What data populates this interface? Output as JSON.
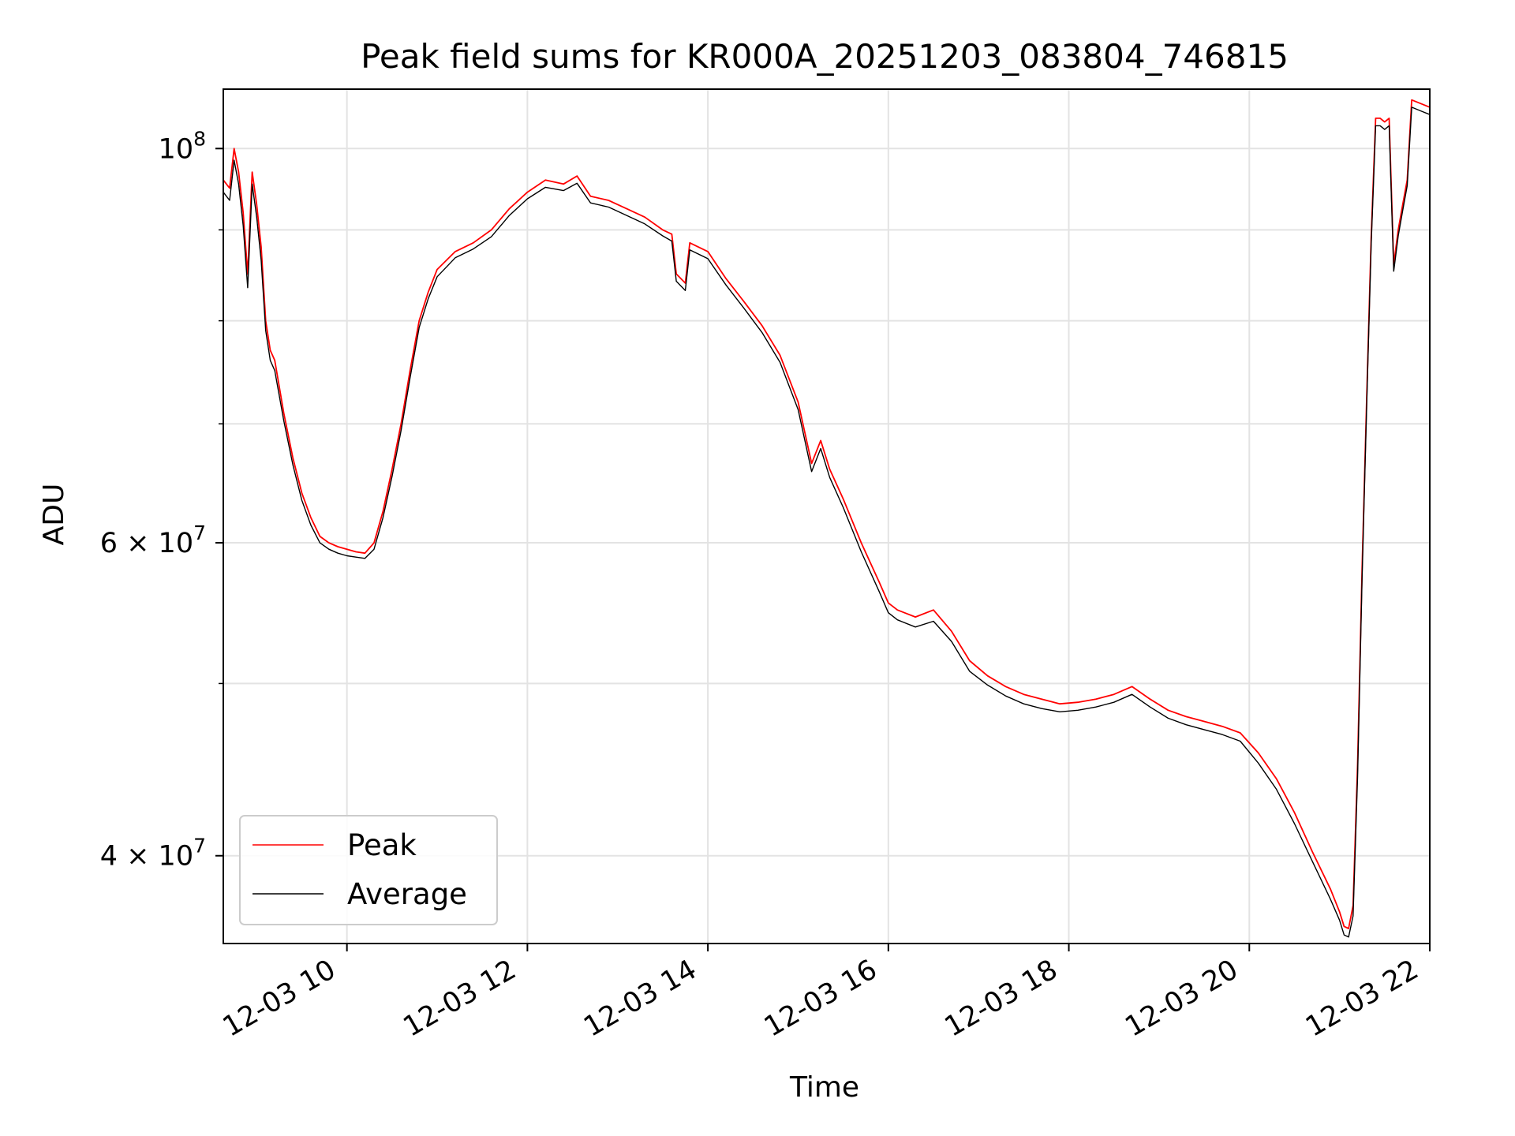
{
  "chart_data": {
    "type": "line",
    "title": "Peak field sums for KR000A_20251203_083804_746815",
    "xlabel": "Time",
    "ylabel": "ADU",
    "x_unit": "hours since 12-03 00:00",
    "xlim": [
      8.63,
      22.0
    ],
    "ylim": [
      35700000,
      108000000
    ],
    "yscale": "log",
    "grid": true,
    "legend_loc": "lower-left",
    "x_ticks": [
      {
        "value": 10,
        "label": "12-03 10"
      },
      {
        "value": 12,
        "label": "12-03 12"
      },
      {
        "value": 14,
        "label": "12-03 14"
      },
      {
        "value": 16,
        "label": "12-03 16"
      },
      {
        "value": 18,
        "label": "12-03 18"
      },
      {
        "value": 20,
        "label": "12-03 20"
      },
      {
        "value": 22,
        "label": "12-03 22"
      }
    ],
    "y_major_ticks": [
      {
        "value": 100000000,
        "base": "10",
        "exp": "8"
      },
      {
        "value": 60000000,
        "base": "6 × 10",
        "exp": "7"
      },
      {
        "value": 40000000,
        "base": "4 × 10",
        "exp": "7"
      }
    ],
    "y_minor_ticks": [
      90000000,
      80000000,
      70000000,
      50000000
    ],
    "series": [
      {
        "name": "Peak",
        "color": "#ff0000",
        "x": [
          8.63,
          8.7,
          8.75,
          8.8,
          8.85,
          8.9,
          8.95,
          9.0,
          9.05,
          9.1,
          9.15,
          9.2,
          9.3,
          9.4,
          9.5,
          9.6,
          9.7,
          9.8,
          9.9,
          10.0,
          10.1,
          10.2,
          10.3,
          10.4,
          10.5,
          10.6,
          10.7,
          10.8,
          10.9,
          11.0,
          11.2,
          11.4,
          11.6,
          11.8,
          12.0,
          12.2,
          12.4,
          12.55,
          12.7,
          12.9,
          13.1,
          13.3,
          13.5,
          13.6,
          13.65,
          13.75,
          13.8,
          14.0,
          14.2,
          14.4,
          14.6,
          14.8,
          15.0,
          15.15,
          15.25,
          15.35,
          15.5,
          15.7,
          15.9,
          16.0,
          16.1,
          16.3,
          16.5,
          16.7,
          16.9,
          17.1,
          17.3,
          17.5,
          17.7,
          17.9,
          18.1,
          18.3,
          18.5,
          18.7,
          18.9,
          19.1,
          19.3,
          19.5,
          19.7,
          19.9,
          20.1,
          20.3,
          20.5,
          20.7,
          20.9,
          21.0,
          21.05,
          21.1,
          21.15,
          21.2,
          21.25,
          21.3,
          21.35,
          21.4,
          21.45,
          21.5,
          21.55,
          21.6,
          21.65,
          21.7,
          21.75,
          21.8,
          21.9,
          22.0
        ],
        "values": [
          96000000,
          95000000,
          100000000,
          97000000,
          92000000,
          85000000,
          97000000,
          93000000,
          88000000,
          80000000,
          77000000,
          76000000,
          71000000,
          67000000,
          64000000,
          62000000,
          60500000,
          60000000,
          59700000,
          59500000,
          59300000,
          59200000,
          60000000,
          62500000,
          66000000,
          70000000,
          75000000,
          80000000,
          83000000,
          85500000,
          87500000,
          88500000,
          90000000,
          92500000,
          94500000,
          96000000,
          95500000,
          96500000,
          94000000,
          93500000,
          92500000,
          91500000,
          90000000,
          89500000,
          85000000,
          84000000,
          88500000,
          87500000,
          84500000,
          82000000,
          79500000,
          76500000,
          72000000,
          66500000,
          68500000,
          66000000,
          63500000,
          60000000,
          57000000,
          55500000,
          55000000,
          54500000,
          55000000,
          53500000,
          51500000,
          50500000,
          49800000,
          49300000,
          49000000,
          48700000,
          48800000,
          49000000,
          49300000,
          49800000,
          49000000,
          48300000,
          47900000,
          47600000,
          47300000,
          46900000,
          45700000,
          44200000,
          42300000,
          40200000,
          38300000,
          37200000,
          36500000,
          36400000,
          37500000,
          45000000,
          58000000,
          72000000,
          89000000,
          104000000,
          104000000,
          103500000,
          104000000,
          86000000,
          90000000,
          93000000,
          96000000,
          106500000,
          106000000,
          105500000
        ]
      },
      {
        "name": "Average",
        "color": "#000000",
        "x": [
          8.63,
          8.7,
          8.75,
          8.8,
          8.85,
          8.9,
          8.95,
          9.0,
          9.05,
          9.1,
          9.15,
          9.2,
          9.3,
          9.4,
          9.5,
          9.6,
          9.7,
          9.8,
          9.9,
          10.0,
          10.1,
          10.2,
          10.3,
          10.4,
          10.5,
          10.6,
          10.7,
          10.8,
          10.9,
          11.0,
          11.2,
          11.4,
          11.6,
          11.8,
          12.0,
          12.2,
          12.4,
          12.55,
          12.7,
          12.9,
          13.1,
          13.3,
          13.5,
          13.6,
          13.65,
          13.75,
          13.8,
          14.0,
          14.2,
          14.4,
          14.6,
          14.8,
          15.0,
          15.15,
          15.25,
          15.35,
          15.5,
          15.7,
          15.9,
          16.0,
          16.1,
          16.3,
          16.5,
          16.7,
          16.9,
          17.1,
          17.3,
          17.5,
          17.7,
          17.9,
          18.1,
          18.3,
          18.5,
          18.7,
          18.9,
          19.1,
          19.3,
          19.5,
          19.7,
          19.9,
          20.1,
          20.3,
          20.5,
          20.7,
          20.9,
          21.0,
          21.05,
          21.1,
          21.15,
          21.2,
          21.25,
          21.3,
          21.35,
          21.4,
          21.45,
          21.5,
          21.55,
          21.6,
          21.65,
          21.7,
          21.75,
          21.8,
          21.9,
          22.0
        ],
        "values": [
          94500000,
          93500000,
          98500000,
          95500000,
          90500000,
          83500000,
          95500000,
          91500000,
          86500000,
          79000000,
          76000000,
          75000000,
          70300000,
          66400000,
          63400000,
          61400000,
          60000000,
          59500000,
          59200000,
          59000000,
          58900000,
          58800000,
          59500000,
          62000000,
          65400000,
          69400000,
          74300000,
          79300000,
          82300000,
          84700000,
          86800000,
          87800000,
          89200000,
          91700000,
          93700000,
          95100000,
          94700000,
          95600000,
          93200000,
          92700000,
          91700000,
          90700000,
          89300000,
          88700000,
          84200000,
          83200000,
          87700000,
          86700000,
          83800000,
          81300000,
          78800000,
          75800000,
          71300000,
          65800000,
          67800000,
          65300000,
          62800000,
          59300000,
          56300000,
          54800000,
          54300000,
          53800000,
          54200000,
          52800000,
          50800000,
          49900000,
          49200000,
          48700000,
          48400000,
          48200000,
          48300000,
          48500000,
          48800000,
          49300000,
          48500000,
          47800000,
          47400000,
          47100000,
          46800000,
          46400000,
          45100000,
          43600000,
          41700000,
          39700000,
          37800000,
          36800000,
          36100000,
          36000000,
          37000000,
          44300000,
          57300000,
          71300000,
          88200000,
          103000000,
          103000000,
          102500000,
          103000000,
          85300000,
          89300000,
          92300000,
          95300000,
          105500000,
          105000000,
          104500000
        ]
      }
    ]
  }
}
